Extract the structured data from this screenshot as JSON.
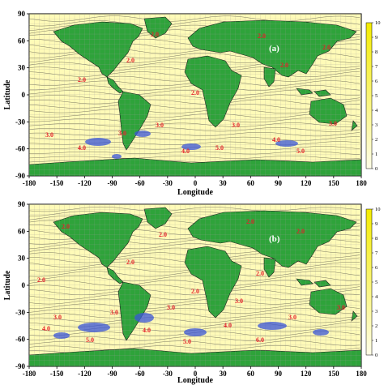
{
  "panels": [
    {
      "id": "a",
      "label": "(a)",
      "xlabel": "Longitude",
      "ylabel": "Latitude",
      "contour_labels": [
        "2.0",
        "2.0",
        "2.0",
        "2.0",
        "2.0",
        "2.0",
        "2.0",
        "3.0",
        "3.0",
        "3.0",
        "3.0",
        "3.0",
        "4.0",
        "4.0",
        "4.0",
        "5.0",
        "5.0"
      ]
    },
    {
      "id": "b",
      "label": "(b)",
      "xlabel": "Longitude",
      "ylabel": "Latitude",
      "contour_labels": [
        "2.0",
        "2.0",
        "2.0",
        "2.0",
        "2.0",
        "2.0",
        "2.0",
        "2.0",
        "3.0",
        "3.0",
        "3.0",
        "3.0",
        "3.0",
        "3.0",
        "4.0",
        "4.0",
        "4.0",
        "5.0",
        "5.0",
        "6.0"
      ]
    }
  ],
  "x_ticks": [
    "-180",
    "-150",
    "-120",
    "-90",
    "-60",
    "-30",
    "0",
    "30",
    "60",
    "90",
    "120",
    "150",
    "180"
  ],
  "y_ticks": [
    "90",
    "60",
    "30",
    "0",
    "-30",
    "-60",
    "-90"
  ],
  "colorbar_ticks": [
    "10",
    "9",
    "8",
    "7",
    "6",
    "5",
    "4",
    "3",
    "2",
    "1",
    "0"
  ],
  "colors": {
    "ocean": "#fffbb8",
    "land": "#2ea33a",
    "grid": "#9a9a9a",
    "contour": "#2a2a2a",
    "contour_label": "#e4202a",
    "high_wave": "#3a55d8",
    "colorbar_top": "#f4ec00",
    "colorbar_bottom": "#fffde8"
  }
}
